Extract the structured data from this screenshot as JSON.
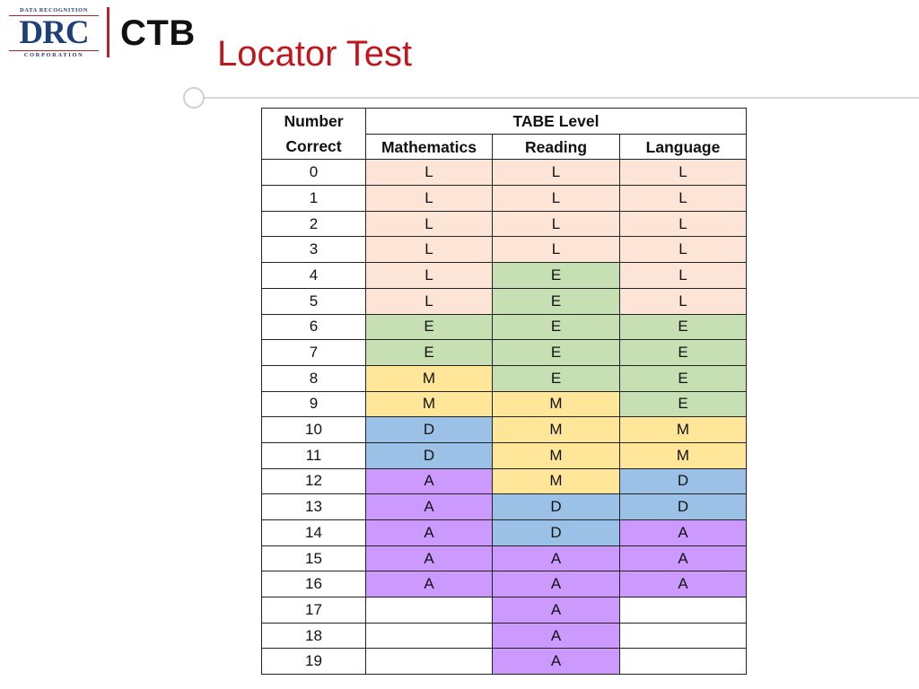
{
  "logo": {
    "drc_top": "DATA RECOGNITION",
    "drc_main": "DRC",
    "drc_bottom": "CORPORATION",
    "ctb": "CTB"
  },
  "title": "Locator Test",
  "table": {
    "header_number": "Number",
    "header_correct": "Correct",
    "header_group": "TABE Level",
    "columns": [
      "Mathematics",
      "Reading",
      "Language"
    ],
    "rows": [
      {
        "n": "0",
        "math": "L",
        "reading": "L",
        "language": "L"
      },
      {
        "n": "1",
        "math": "L",
        "reading": "L",
        "language": "L"
      },
      {
        "n": "2",
        "math": "L",
        "reading": "L",
        "language": "L"
      },
      {
        "n": "3",
        "math": "L",
        "reading": "L",
        "language": "L"
      },
      {
        "n": "4",
        "math": "L",
        "reading": "E",
        "language": "L"
      },
      {
        "n": "5",
        "math": "L",
        "reading": "E",
        "language": "L"
      },
      {
        "n": "6",
        "math": "E",
        "reading": "E",
        "language": "E"
      },
      {
        "n": "7",
        "math": "E",
        "reading": "E",
        "language": "E"
      },
      {
        "n": "8",
        "math": "M",
        "reading": "E",
        "language": "E"
      },
      {
        "n": "9",
        "math": "M",
        "reading": "M",
        "language": "E"
      },
      {
        "n": "10",
        "math": "D",
        "reading": "M",
        "language": "M"
      },
      {
        "n": "11",
        "math": "D",
        "reading": "M",
        "language": "M"
      },
      {
        "n": "12",
        "math": "A",
        "reading": "M",
        "language": "D"
      },
      {
        "n": "13",
        "math": "A",
        "reading": "D",
        "language": "D"
      },
      {
        "n": "14",
        "math": "A",
        "reading": "D",
        "language": "A"
      },
      {
        "n": "15",
        "math": "A",
        "reading": "A",
        "language": "A"
      },
      {
        "n": "16",
        "math": "A",
        "reading": "A",
        "language": "A"
      },
      {
        "n": "17",
        "math": "",
        "reading": "A",
        "language": ""
      },
      {
        "n": "18",
        "math": "",
        "reading": "A",
        "language": ""
      },
      {
        "n": "19",
        "math": "",
        "reading": "A",
        "language": ""
      }
    ]
  },
  "level_colors": {
    "L": "#fce4d6",
    "E": "#c6e0b4",
    "M": "#ffe699",
    "D": "#9bc2e6",
    "A": "#cc99ff"
  },
  "colors": {
    "title": "#c0161d",
    "drc_blue": "#1f3f78",
    "drc_red": "#b0242a"
  }
}
